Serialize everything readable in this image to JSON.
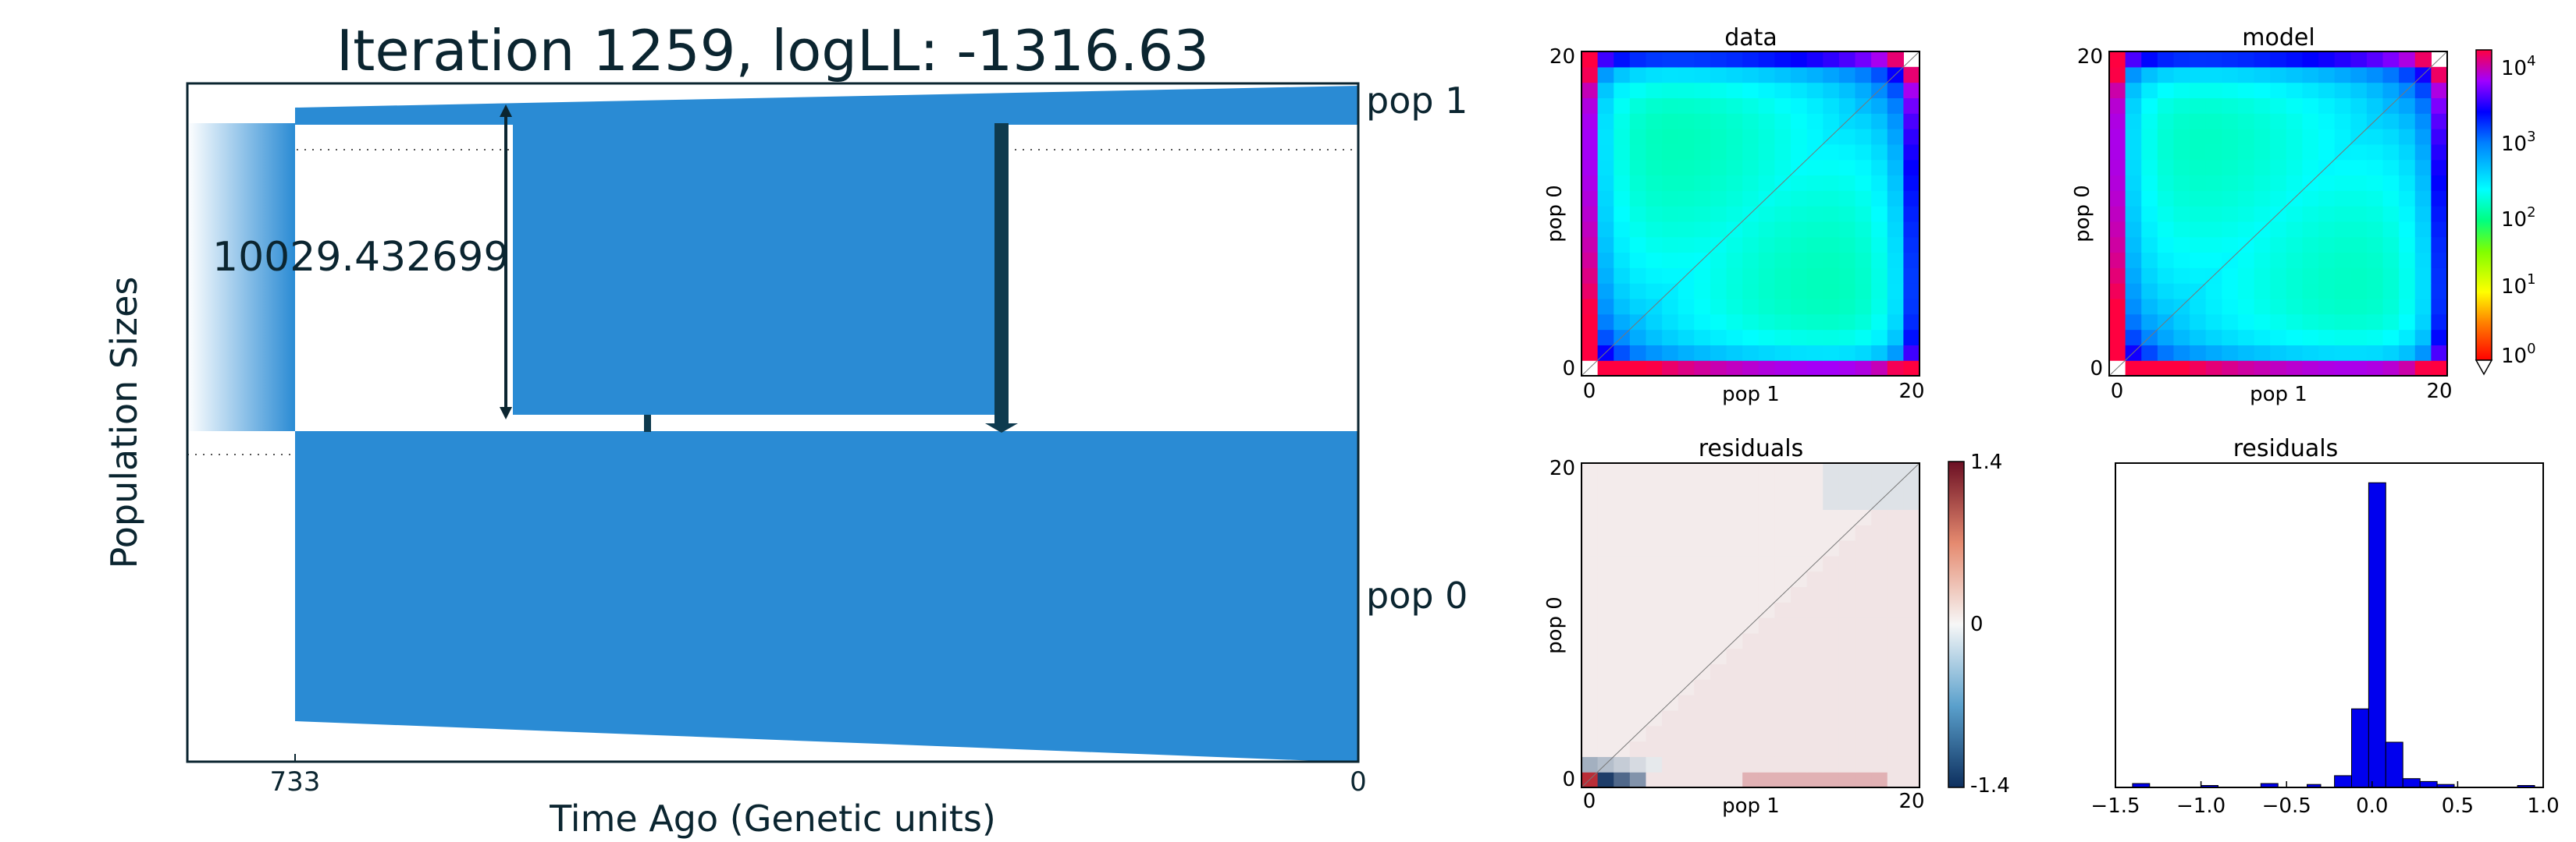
{
  "demography": {
    "title": "Iteration 1259, logLL:   -1316.63",
    "xlabel": "Time Ago (Genetic units)",
    "ylabel": "Population Sizes",
    "time_ticks": [
      "733",
      "0"
    ],
    "pop_labels": [
      "pop 1",
      "pop 0"
    ],
    "size_annotation": "10029.432699",
    "fill_color": "#2a8bd4",
    "arrow_color": "#0e3a4e"
  },
  "chart_data": [
    {
      "type": "heatmap",
      "title": "data",
      "xlabel": "pop 1",
      "ylabel": "pop 0",
      "x_ticks": [
        "0",
        "20"
      ],
      "y_ticks": [
        "0",
        "20"
      ],
      "grid_size": 21,
      "color_scale": "log",
      "vrange": [
        1,
        10000
      ]
    },
    {
      "type": "heatmap",
      "title": "model",
      "xlabel": "pop 1",
      "ylabel": "pop 0",
      "x_ticks": [
        "0",
        "20"
      ],
      "y_ticks": [
        "0",
        "20"
      ],
      "grid_size": 21,
      "color_scale": "log",
      "vrange": [
        1,
        10000
      ],
      "colorbar_labels": [
        "10",
        "10",
        "10",
        "10",
        "10"
      ],
      "colorbar_exponents": [
        "0",
        "1",
        "2",
        "3",
        "4"
      ]
    },
    {
      "type": "heatmap",
      "title": "residuals",
      "xlabel": "pop 1",
      "ylabel": "pop 0",
      "x_ticks": [
        "0",
        "20"
      ],
      "y_ticks": [
        "0",
        "20"
      ],
      "grid_size": 21,
      "vrange": [
        -1.4,
        1.4
      ],
      "colorbar_labels": [
        "1.4",
        "0",
        "-1.4"
      ]
    },
    {
      "type": "bar",
      "title": "residuals",
      "x_ticks": [
        "−1.5",
        "−1.0",
        "−0.5",
        "0.0",
        "0.5",
        "1.0"
      ],
      "xlim": [
        -1.5,
        1.0
      ],
      "bins": [
        {
          "x0": -1.4,
          "x1": -1.3,
          "count": 4
        },
        {
          "x0": -1.0,
          "x1": -0.9,
          "count": 2
        },
        {
          "x0": -0.65,
          "x1": -0.55,
          "count": 4
        },
        {
          "x0": -0.38,
          "x1": -0.3,
          "count": 3
        },
        {
          "x0": -0.22,
          "x1": -0.12,
          "count": 12
        },
        {
          "x0": -0.12,
          "x1": -0.02,
          "count": 80
        },
        {
          "x0": -0.02,
          "x1": 0.08,
          "count": 310
        },
        {
          "x0": 0.08,
          "x1": 0.18,
          "count": 46
        },
        {
          "x0": 0.18,
          "x1": 0.28,
          "count": 9
        },
        {
          "x0": 0.28,
          "x1": 0.38,
          "count": 6
        },
        {
          "x0": 0.38,
          "x1": 0.48,
          "count": 3
        },
        {
          "x0": 0.85,
          "x1": 0.95,
          "count": 2
        }
      ],
      "bar_color": "#0000ee"
    }
  ]
}
